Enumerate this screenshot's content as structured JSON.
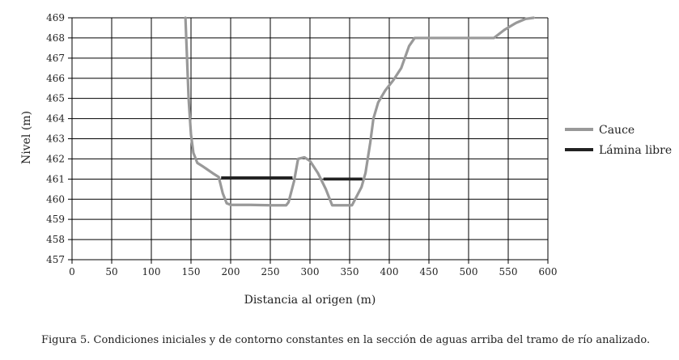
{
  "chart_data": {
    "type": "line",
    "xlabel": "Distancia al origen (m)",
    "ylabel": "Nivel (m)",
    "xlim": [
      0,
      600
    ],
    "ylim": [
      457,
      469
    ],
    "x_ticks": [
      0,
      50,
      100,
      150,
      200,
      250,
      300,
      350,
      400,
      450,
      500,
      550,
      600
    ],
    "y_ticks": [
      457,
      458,
      459,
      460,
      461,
      462,
      463,
      464,
      465,
      466,
      467,
      468,
      469
    ],
    "grid": true,
    "legend_position": "right",
    "series": [
      {
        "name": "Cauce",
        "color": "#999999",
        "points": [
          [
            143,
            469
          ],
          [
            145,
            467
          ],
          [
            147,
            465
          ],
          [
            150,
            463.2
          ],
          [
            153,
            462.3
          ],
          [
            158,
            461.8
          ],
          [
            166,
            461.6
          ],
          [
            177,
            461.3
          ],
          [
            185,
            461.1
          ],
          [
            190,
            460.3
          ],
          [
            195,
            459.8
          ],
          [
            200,
            459.72
          ],
          [
            225,
            459.72
          ],
          [
            250,
            459.7
          ],
          [
            270,
            459.7
          ],
          [
            273,
            459.85
          ],
          [
            280,
            460.9
          ],
          [
            285,
            462.0
          ],
          [
            293,
            462.08
          ],
          [
            300,
            461.9
          ],
          [
            310,
            461.3
          ],
          [
            320,
            460.5
          ],
          [
            328,
            459.7
          ],
          [
            335,
            459.7
          ],
          [
            350,
            459.7
          ],
          [
            353,
            459.7
          ],
          [
            365,
            460.6
          ],
          [
            370,
            461.3
          ],
          [
            376,
            462.8
          ],
          [
            380,
            464.0
          ],
          [
            386,
            464.8
          ],
          [
            395,
            465.4
          ],
          [
            405,
            465.9
          ],
          [
            415,
            466.5
          ],
          [
            425,
            467.6
          ],
          [
            432,
            468.0
          ],
          [
            440,
            468.0
          ],
          [
            460,
            468.0
          ],
          [
            532,
            468.0
          ],
          [
            545,
            468.4
          ],
          [
            560,
            468.75
          ],
          [
            572,
            468.95
          ],
          [
            582,
            469.0
          ]
        ]
      },
      {
        "name": "Lámina libre",
        "color": "#222222",
        "segments": [
          [
            [
              188,
              461.06
            ],
            [
              278,
              461.06
            ]
          ],
          [
            [
              317,
              461.0
            ],
            [
              366,
              461.0
            ]
          ]
        ]
      }
    ]
  },
  "caption": "Figura 5. Condiciones iniciales y de contorno constantes en la sección de aguas arriba del tramo de río analizado."
}
